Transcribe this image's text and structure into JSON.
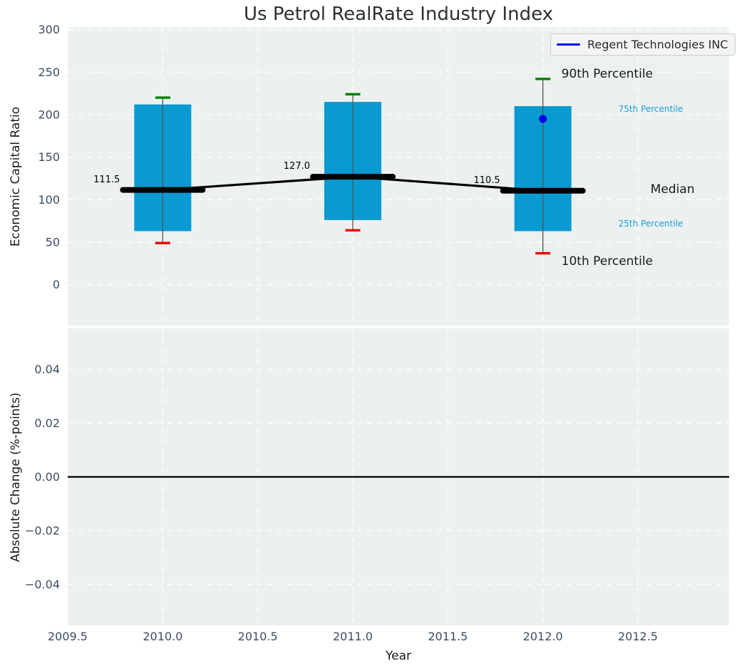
{
  "colors": {
    "axes_background": "#ecf0f0",
    "grid": "#ffffff",
    "box_fill": "#089ad0",
    "whisker": "#555555",
    "cap_high": "#008000",
    "cap_low": "#ee0000",
    "median_line": "#000000",
    "zero_line": "#000000",
    "company_marker": "#0000e6",
    "tick_text": "#3b4c63",
    "percentile_label_blue": "#1a9fd6"
  },
  "chart_data": {
    "type": "boxplot",
    "title": "Us Petrol RealRate Industry Index",
    "xlabel": "Year",
    "xlim": [
      2009.5,
      2012.98
    ],
    "xticks": [
      2009.5,
      2010.0,
      2010.5,
      2011.0,
      2011.5,
      2012.0,
      2012.5
    ],
    "xtick_labels": [
      "2009.5",
      "2010.0",
      "2010.5",
      "2011.0",
      "2011.5",
      "2012.0",
      "2012.5"
    ],
    "top": {
      "ylabel": "Economic Capital Ratio",
      "ylim": [
        -48,
        303
      ],
      "ytick_values": [
        0,
        50,
        100,
        150,
        200,
        250,
        300
      ],
      "ytick_labels": [
        "0",
        "50",
        "100",
        "150",
        "200",
        "250",
        "300"
      ],
      "grid": true,
      "boxes": [
        {
          "year": 2010,
          "p10": 49,
          "p25": 63,
          "median": 111.5,
          "p75": 212,
          "p90": 220,
          "median_label": "111.5"
        },
        {
          "year": 2011,
          "p10": 64,
          "p25": 76,
          "median": 127.0,
          "p75": 215,
          "p90": 224,
          "median_label": "127.0"
        },
        {
          "year": 2012,
          "p10": 37,
          "p25": 63,
          "median": 110.5,
          "p75": 210,
          "p90": 242,
          "median_label": "110.5"
        }
      ],
      "company_point": {
        "year": 2012,
        "value": 195
      },
      "labels": {
        "p90": "90th Percentile",
        "p75": "75th Percentile",
        "median": "Median",
        "p25": "25th Percentile",
        "p10": "10th Percentile"
      }
    },
    "bottom": {
      "ylabel": "Absolute Change (%-points)",
      "ylim": [
        -0.0553,
        0.0553
      ],
      "ytick_values": [
        0.04,
        0.02,
        0.0,
        -0.02,
        -0.04
      ],
      "ytick_labels": [
        "0.04",
        "0.02",
        "0.00",
        "−0.02",
        "−0.04"
      ],
      "grid": true,
      "zero_line": 0.0
    },
    "legend": {
      "label": "Regent Technologies INC",
      "position": "upper right"
    }
  }
}
